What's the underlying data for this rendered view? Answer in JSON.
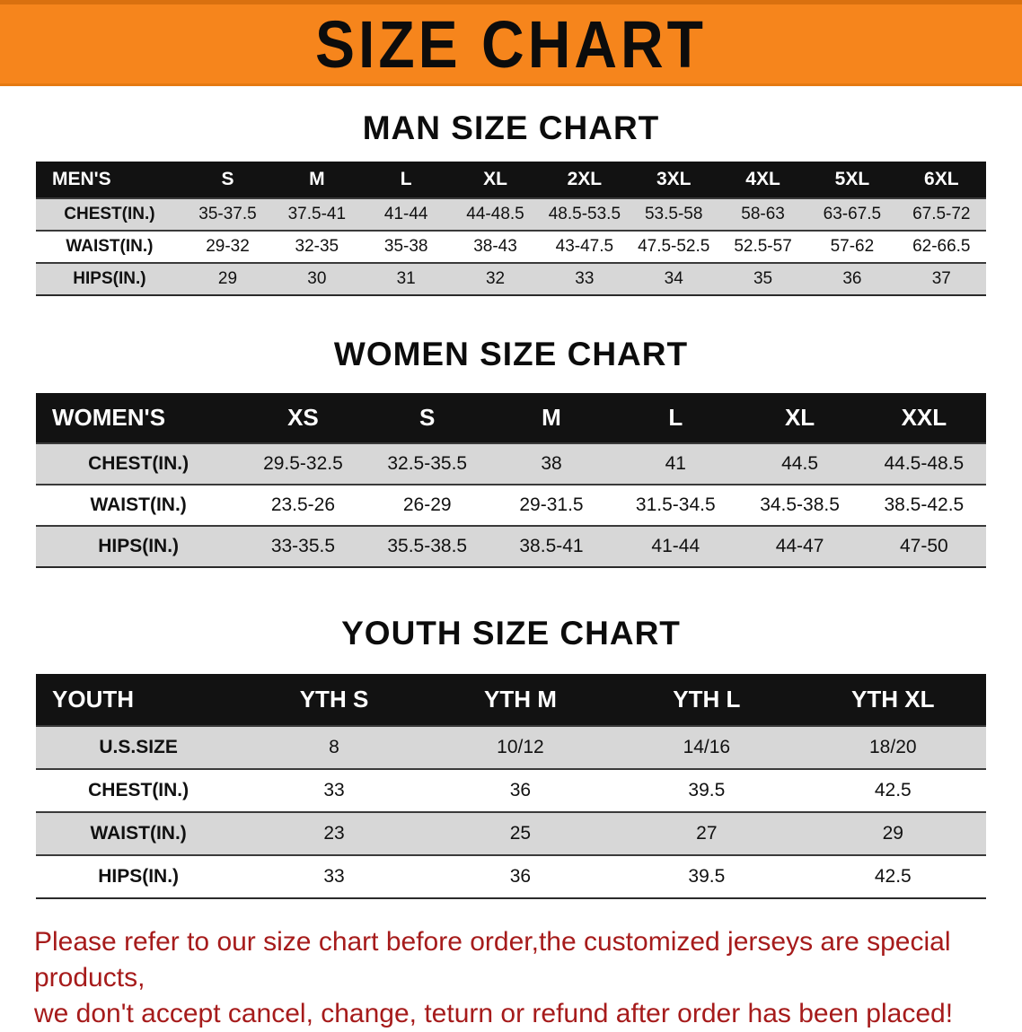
{
  "banner": {
    "title": "SIZE CHART",
    "bg_color": "#F6851C"
  },
  "sections": [
    {
      "heading": "MAN SIZE CHART",
      "table": {
        "header": [
          "MEN'S",
          "S",
          "M",
          "L",
          "XL",
          "2XL",
          "3XL",
          "4XL",
          "5XL",
          "6XL"
        ],
        "rows": [
          [
            "CHEST(IN.)",
            "35-37.5",
            "37.5-41",
            "41-44",
            "44-48.5",
            "48.5-53.5",
            "53.5-58",
            "58-63",
            "63-67.5",
            "67.5-72"
          ],
          [
            "WAIST(IN.)",
            "29-32",
            "32-35",
            "35-38",
            "38-43",
            "43-47.5",
            "47.5-52.5",
            "52.5-57",
            "57-62",
            "62-66.5"
          ],
          [
            "HIPS(IN.)",
            "29",
            "30",
            "31",
            "32",
            "33",
            "34",
            "35",
            "36",
            "37"
          ]
        ]
      }
    },
    {
      "heading": "WOMEN SIZE CHART",
      "table": {
        "header": [
          "WOMEN'S",
          "XS",
          "S",
          "M",
          "L",
          "XL",
          "XXL"
        ],
        "rows": [
          [
            "CHEST(IN.)",
            "29.5-32.5",
            "32.5-35.5",
            "38",
            "41",
            "44.5",
            "44.5-48.5"
          ],
          [
            "WAIST(IN.)",
            "23.5-26",
            "26-29",
            "29-31.5",
            "31.5-34.5",
            "34.5-38.5",
            "38.5-42.5"
          ],
          [
            "HIPS(IN.)",
            "33-35.5",
            "35.5-38.5",
            "38.5-41",
            "41-44",
            "44-47",
            "47-50"
          ]
        ]
      }
    },
    {
      "heading": "YOUTH SIZE CHART",
      "table": {
        "header": [
          "YOUTH",
          "YTH S",
          "YTH M",
          "YTH L",
          "YTH XL"
        ],
        "rows": [
          [
            "U.S.SIZE",
            "8",
            "10/12",
            "14/16",
            "18/20"
          ],
          [
            "CHEST(IN.)",
            "33",
            "36",
            "39.5",
            "42.5"
          ],
          [
            "WAIST(IN.)",
            "23",
            "25",
            "27",
            "29"
          ],
          [
            "HIPS(IN.)",
            "33",
            "36",
            "39.5",
            "42.5"
          ]
        ]
      }
    }
  ],
  "footer": {
    "text_color": "#A61B1B",
    "lines": [
      "Please refer to our size chart before order,the customized jerseys are special products,",
      "we don't accept cancel, change, teturn or refund after order has been placed!"
    ]
  }
}
